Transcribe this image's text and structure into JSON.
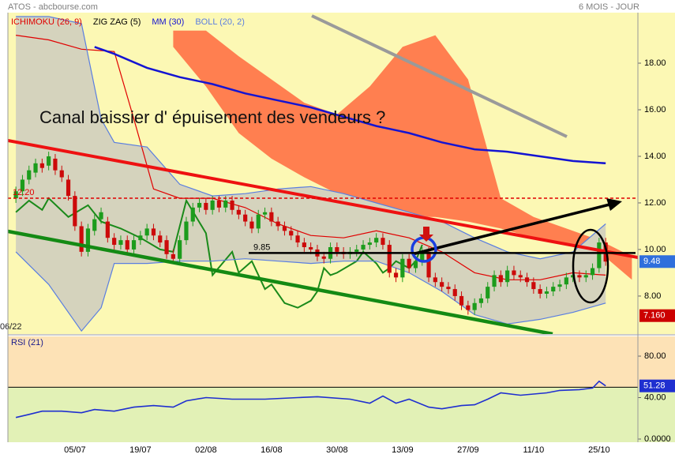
{
  "chart_data": [
    {
      "type": "candlestick",
      "title": "ATOS - abcbourse.com",
      "subtitle": "6 MOIS - JOUR",
      "start_label": "06/22",
      "annotation": "Canal baissier d' épuisement des vendeurs ?",
      "categories": [
        null,
        null,
        null,
        null,
        null,
        null,
        null,
        null,
        null,
        "05/07",
        null,
        null,
        null,
        null,
        null,
        null,
        null,
        null,
        null,
        "19/07",
        null,
        null,
        null,
        null,
        null,
        null,
        null,
        null,
        null,
        "02/08",
        null,
        null,
        null,
        null,
        null,
        null,
        null,
        null,
        null,
        "16/08",
        null,
        null,
        null,
        null,
        null,
        null,
        null,
        null,
        null,
        "30/08",
        null,
        null,
        null,
        null,
        null,
        null,
        null,
        null,
        null,
        "13/09",
        null,
        null,
        null,
        null,
        null,
        null,
        null,
        null,
        null,
        "27/09",
        null,
        null,
        null,
        null,
        null,
        null,
        null,
        null,
        null,
        "11/10",
        null,
        null,
        null,
        null,
        null,
        null,
        null,
        null,
        null,
        "25/10",
        null,
        null,
        null,
        null,
        null
      ],
      "open": [
        12.2,
        12.5,
        13.0,
        13.3,
        13.7,
        13.6,
        13.9,
        13.4,
        13.0,
        12.3,
        11.0,
        9.9,
        10.8,
        11.3,
        11.2,
        10.5,
        10.2,
        10.4,
        10.0,
        10.4,
        10.6,
        10.9,
        10.6,
        10.4,
        9.8,
        9.6,
        10.4,
        11.2,
        11.8,
        12.0,
        11.7,
        12.1,
        11.8,
        12.1,
        11.7,
        11.5,
        11.2,
        10.9,
        11.5,
        11.6,
        11.2,
        11.0,
        10.8,
        10.6,
        10.3,
        10.1,
        10.0,
        9.7,
        9.6,
        10.1,
        9.9,
        9.8,
        9.9,
        10.0,
        10.2,
        10.3,
        10.5,
        10.2,
        9.0,
        8.8,
        9.6,
        9.2,
        9.5,
        9.9,
        8.8,
        8.6,
        8.4,
        8.3,
        8.0,
        7.6,
        7.4,
        7.7,
        7.9,
        8.4,
        8.9,
        8.6,
        9.1,
        8.9,
        8.8,
        8.6,
        8.3,
        8.1,
        8.2,
        8.4,
        8.5,
        8.8,
        8.9,
        8.8,
        8.9,
        9.2,
        10.3,
        null,
        null,
        null,
        null
      ],
      "high": [
        12.7,
        13.2,
        13.6,
        13.9,
        13.9,
        14.2,
        14.1,
        13.6,
        13.2,
        12.5,
        11.2,
        11.1,
        11.5,
        11.8,
        11.4,
        10.7,
        10.6,
        10.6,
        10.6,
        10.8,
        11.1,
        11.1,
        10.8,
        10.6,
        10.0,
        10.6,
        11.4,
        12.0,
        12.2,
        12.2,
        12.3,
        12.3,
        12.3,
        12.3,
        11.9,
        11.7,
        11.4,
        11.7,
        11.8,
        11.8,
        11.4,
        11.2,
        11.0,
        10.8,
        10.5,
        10.3,
        10.2,
        9.9,
        10.3,
        10.3,
        10.1,
        10.1,
        10.2,
        10.4,
        10.5,
        10.7,
        10.7,
        10.4,
        9.2,
        9.8,
        9.8,
        9.7,
        10.1,
        10.1,
        9.0,
        8.8,
        8.6,
        8.5,
        8.2,
        7.8,
        7.9,
        8.1,
        8.6,
        9.1,
        9.1,
        9.3,
        9.3,
        9.1,
        9.0,
        8.8,
        8.5,
        8.4,
        8.6,
        8.7,
        9.0,
        9.1,
        9.1,
        9.1,
        9.4,
        10.5,
        10.5,
        null,
        null,
        null,
        null
      ],
      "low": [
        12.0,
        12.3,
        12.8,
        13.1,
        13.3,
        13.4,
        13.2,
        12.9,
        12.1,
        10.8,
        9.7,
        9.7,
        10.6,
        11.1,
        10.3,
        10.0,
        10.0,
        9.8,
        9.8,
        10.2,
        10.4,
        10.4,
        10.1,
        9.6,
        9.4,
        9.4,
        10.2,
        11.0,
        11.6,
        11.5,
        11.5,
        11.6,
        11.6,
        11.5,
        11.3,
        11.0,
        10.7,
        10.7,
        11.3,
        11.0,
        10.8,
        10.6,
        10.4,
        10.1,
        9.9,
        9.8,
        9.5,
        9.4,
        9.4,
        9.7,
        9.6,
        9.6,
        9.7,
        9.8,
        10.0,
        10.1,
        10.0,
        8.8,
        8.6,
        8.6,
        9.0,
        9.0,
        9.3,
        8.6,
        8.4,
        8.2,
        8.1,
        7.8,
        7.4,
        7.2,
        7.2,
        7.5,
        7.7,
        8.2,
        8.4,
        8.4,
        8.7,
        8.6,
        8.4,
        8.1,
        7.9,
        7.9,
        8.0,
        8.2,
        8.3,
        8.6,
        8.6,
        8.6,
        8.7,
        9.0,
        9.3,
        null,
        null,
        null,
        null
      ],
      "close": [
        12.5,
        13.0,
        13.4,
        13.7,
        13.5,
        14.0,
        13.4,
        13.1,
        12.3,
        11.0,
        9.9,
        10.9,
        11.3,
        11.6,
        10.5,
        10.2,
        10.4,
        10.0,
        10.4,
        10.6,
        10.9,
        10.6,
        10.3,
        9.8,
        9.6,
        10.4,
        11.2,
        11.8,
        12.0,
        11.7,
        12.1,
        11.8,
        12.1,
        11.7,
        11.5,
        11.2,
        10.9,
        11.5,
        11.6,
        11.2,
        11.0,
        10.8,
        10.6,
        10.3,
        10.1,
        10.0,
        9.7,
        9.6,
        10.1,
        9.9,
        9.8,
        9.9,
        10.0,
        10.2,
        10.3,
        10.5,
        10.2,
        9.0,
        8.8,
        9.6,
        9.2,
        9.5,
        9.9,
        8.8,
        8.6,
        8.4,
        8.3,
        8.0,
        7.6,
        7.4,
        7.7,
        7.9,
        8.4,
        8.9,
        8.6,
        9.1,
        8.9,
        8.8,
        8.6,
        8.3,
        8.1,
        8.2,
        8.4,
        8.5,
        8.8,
        8.9,
        8.8,
        8.9,
        9.2,
        10.3,
        9.48,
        null,
        null,
        null,
        null
      ],
      "up_color": "#1c9c1c",
      "down_color": "#cc0a0a",
      "last_color": "#2f6fdc",
      "ylim": [
        6.37,
        20.17
      ],
      "yticks": [
        {
          "value": 8,
          "label": "8.00"
        },
        {
          "value": 10,
          "label": "10.00"
        },
        {
          "value": 12,
          "label": "12.00"
        },
        {
          "value": 14,
          "label": "14.00"
        },
        {
          "value": 16,
          "label": "16.00"
        },
        {
          "value": 18,
          "label": "18.00"
        }
      ],
      "grid": false,
      "series": [
        {
          "name": "ICHIMOKU (26, 9)",
          "color": "#e00000",
          "x": [
            0,
            5,
            10,
            15,
            18,
            21,
            25,
            30,
            35,
            40,
            45,
            50,
            55,
            60,
            65,
            70,
            75,
            80,
            85,
            90
          ],
          "values": [
            19.2,
            19.0,
            18.6,
            18.5,
            15.6,
            12.6,
            12.2,
            12.2,
            11.8,
            11.1,
            10.6,
            10.5,
            10.8,
            10.5,
            9.9,
            9.0,
            8.7,
            8.7,
            9.0,
            8.9
          ],
          "cloud": {
            "color": "#ff7f50",
            "x": [
              24,
              29,
              34,
              39,
              44,
              49,
              54,
              59,
              64,
              69,
              74,
              79,
              84,
              89,
              94
            ],
            "upper": [
              19.4,
              19.4,
              18.3,
              17.3,
              16.3,
              15.8,
              17.0,
              18.7,
              19.2,
              17.3,
              12.2,
              11.4,
              10.9,
              10.4,
              9.7
            ],
            "lower": [
              18.7,
              17.0,
              15.0,
              13.9,
              13.1,
              12.4,
              11.7,
              11.4,
              11.4,
              11.2,
              10.9,
              10.5,
              10.2,
              9.9,
              8.7
            ]
          }
        },
        {
          "name": "ZIG ZAG (5)",
          "color": "#1a8a1a",
          "legend_color": "#000000",
          "x": [
            0,
            2,
            4,
            5,
            8,
            11,
            13,
            16,
            19,
            22,
            24,
            26,
            29,
            30,
            33,
            34,
            36,
            38,
            39,
            41,
            43,
            45,
            46,
            47,
            48,
            49,
            52,
            53,
            55,
            56,
            57,
            58,
            60,
            61,
            62
          ],
          "values": [
            11.6,
            12.1,
            11.7,
            12.2,
            11.4,
            11.9,
            11.2,
            10.9,
            10.5,
            10.0,
            9.9,
            12.1,
            10.7,
            8.9,
            9.9,
            9.0,
            9.5,
            8.3,
            8.5,
            7.7,
            7.5,
            7.8,
            8.2,
            9.2,
            8.9,
            9.0,
            9.5,
            9.9,
            9.4,
            9.0,
            9.2,
            9.5,
            9.2,
            9.5,
            10.2
          ]
        },
        {
          "name": "MM (30)",
          "color": "#1414d2",
          "x": [
            12,
            15,
            20,
            25,
            30,
            35,
            40,
            45,
            50,
            55,
            60,
            65,
            70,
            75,
            80,
            85,
            90
          ],
          "values": [
            18.7,
            18.4,
            17.8,
            17.4,
            17.1,
            16.7,
            16.4,
            16.1,
            15.7,
            15.3,
            15.0,
            14.6,
            14.3,
            14.2,
            14.0,
            13.8,
            13.7
          ]
        },
        {
          "name": "BOLL (20, 2)",
          "color": "#5a7ee0",
          "fill": "#d5d3bd",
          "x": [
            0,
            5,
            10,
            13,
            15,
            20,
            25,
            30,
            35,
            40,
            45,
            50,
            55,
            60,
            65,
            70,
            75,
            80,
            85,
            90
          ],
          "upper": [
            20.0,
            20.0,
            19.7,
            15.6,
            14.6,
            14.4,
            12.8,
            12.3,
            12.4,
            12.6,
            12.7,
            12.4,
            12.0,
            11.6,
            11.2,
            10.5,
            9.9,
            9.6,
            9.9,
            11.1
          ],
          "lower": [
            9.9,
            8.5,
            6.5,
            7.5,
            9.4,
            9.4,
            9.5,
            9.5,
            9.6,
            9.5,
            9.4,
            9.5,
            9.5,
            9.0,
            8.2,
            7.2,
            6.8,
            7.0,
            7.3,
            7.7
          ]
        }
      ],
      "hlines": [
        {
          "value": 12.2,
          "label": "12.20",
          "color": "#e00000",
          "dashed": true
        },
        {
          "value": 9.85,
          "color": "#000000"
        }
      ],
      "price_tags": [
        {
          "value": 7.16,
          "label": "7.160",
          "color": "#cc0000"
        }
      ]
    },
    {
      "type": "line",
      "title": "RSI (21)",
      "x": [
        0,
        2,
        4,
        7,
        10,
        12,
        15,
        18,
        21,
        24,
        26,
        29,
        33,
        38,
        43,
        46,
        51,
        54,
        56,
        58,
        60,
        63,
        65,
        68,
        70,
        72,
        74,
        77,
        81,
        83,
        86,
        88,
        89,
        90
      ],
      "values": [
        20.8,
        23.8,
        26.9,
        26.9,
        25.4,
        28.5,
        26.9,
        30.8,
        32.3,
        30.8,
        36.9,
        40.0,
        38.5,
        38.5,
        40.0,
        40.8,
        38.5,
        34.6,
        41.5,
        34.6,
        38.5,
        30.8,
        29.2,
        32.3,
        33.1,
        38.5,
        44.6,
        42.3,
        44.6,
        46.9,
        47.7,
        49.2,
        55.8,
        51.28
      ],
      "color": "#1f2fd0",
      "ylim": [
        -3.05,
        99.05
      ],
      "yticks": [
        {
          "value": 0,
          "label": "0.0000"
        },
        {
          "value": 40,
          "label": "40.00"
        },
        {
          "value": 80,
          "label": "80.00"
        }
      ],
      "midline": 50,
      "upper_color": "#fde2b6",
      "lower_color": "#e2f1b6"
    }
  ]
}
